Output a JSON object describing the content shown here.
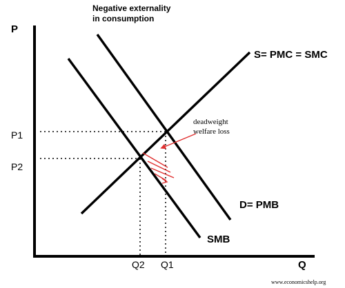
{
  "title": {
    "line1": "Negative externality",
    "line2": "in consumption"
  },
  "axes": {
    "y_label": "P",
    "x_label": "Q"
  },
  "ticks": {
    "p1": "P1",
    "p2": "P2",
    "q1": "Q1",
    "q2": "Q2"
  },
  "curves": {
    "supply": "S= PMC = SMC",
    "demand": "D= PMB",
    "smb": "SMB"
  },
  "annotation": {
    "line1": "deadweight",
    "line2": "welfare loss",
    "color": "#e03030"
  },
  "credit": "www.economicshelp.org"
}
